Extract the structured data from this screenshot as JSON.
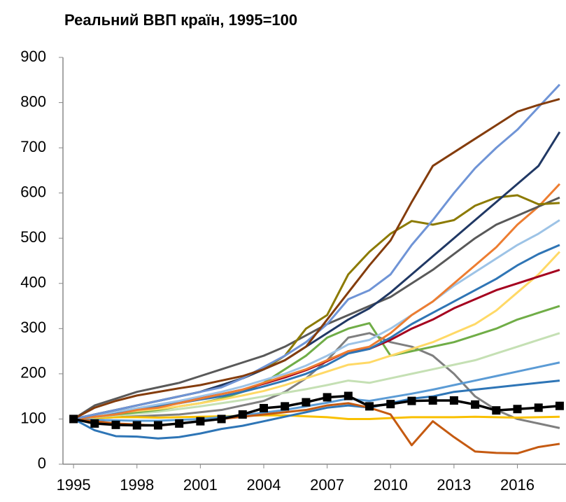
{
  "chart_data": {
    "type": "line",
    "title": "Реальний ВВП країн, 1995=100",
    "x": [
      1995,
      1996,
      1997,
      1998,
      1999,
      2000,
      2001,
      2002,
      2003,
      2004,
      2005,
      2006,
      2007,
      2008,
      2009,
      2010,
      2011,
      2012,
      2013,
      2014,
      2015,
      2016,
      2017,
      2018
    ],
    "xlim": [
      1994.5,
      2018.3
    ],
    "xticks": [
      1995,
      1998,
      2001,
      2004,
      2007,
      2010,
      2013,
      2016
    ],
    "ylim": [
      0,
      900
    ],
    "yticks": [
      0,
      100,
      200,
      300,
      400,
      500,
      600,
      700,
      800,
      900
    ],
    "grid": false,
    "series": [
      {
        "color": "#7f7f7f",
        "values": [
          100,
          102,
          104,
          106,
          108,
          110,
          115,
          120,
          130,
          140,
          160,
          190,
          230,
          280,
          290,
          270,
          260,
          240,
          200,
          150,
          120,
          100,
          90,
          80
        ]
      },
      {
        "color": "#f9c000",
        "values": [
          100,
          102,
          104,
          104,
          103,
          104,
          105,
          106,
          107,
          108,
          108,
          106,
          104,
          100,
          100,
          102,
          104,
          104,
          104,
          105,
          104,
          103,
          104,
          105
        ]
      },
      {
        "color": "#c5e0b4",
        "values": [
          100,
          104,
          108,
          112,
          116,
          122,
          128,
          135,
          142,
          150,
          158,
          166,
          175,
          185,
          180,
          190,
          200,
          210,
          220,
          230,
          245,
          260,
          275,
          290
        ]
      },
      {
        "color": "#5b9bd5",
        "values": [
          100,
          98,
          97,
          96,
          96,
          98,
          100,
          104,
          108,
          114,
          120,
          128,
          136,
          145,
          140,
          148,
          156,
          165,
          175,
          185,
          195,
          205,
          215,
          225
        ]
      },
      {
        "color": "#2e75b6",
        "values": [
          100,
          75,
          62,
          61,
          57,
          60,
          68,
          78,
          85,
          95,
          105,
          115,
          125,
          130,
          125,
          135,
          145,
          150,
          160,
          165,
          170,
          175,
          180,
          185
        ]
      },
      {
        "color": "#c55a11",
        "values": [
          100,
          95,
          90,
          88,
          85,
          90,
          95,
          100,
          105,
          110,
          115,
          120,
          130,
          135,
          125,
          110,
          42,
          95,
          60,
          28,
          25,
          24,
          38,
          45
        ]
      },
      {
        "color": "#70ad47",
        "values": [
          100,
          105,
          110,
          115,
          120,
          128,
          135,
          145,
          160,
          180,
          210,
          240,
          280,
          300,
          312,
          240,
          250,
          260,
          270,
          285,
          300,
          320,
          335,
          350
        ]
      },
      {
        "color": "#ffd966",
        "values": [
          100,
          106,
          112,
          118,
          122,
          128,
          135,
          143,
          152,
          162,
          175,
          190,
          205,
          220,
          225,
          240,
          255,
          270,
          290,
          310,
          340,
          380,
          420,
          470
        ]
      },
      {
        "color": "#a5001e",
        "values": [
          100,
          108,
          115,
          122,
          130,
          138,
          146,
          155,
          165,
          178,
          192,
          208,
          228,
          250,
          255,
          275,
          300,
          320,
          345,
          365,
          385,
          400,
          415,
          430
        ]
      },
      {
        "color": "#2f75b5",
        "values": [
          100,
          108,
          115,
          122,
          128,
          135,
          143,
          150,
          160,
          172,
          185,
          200,
          220,
          245,
          255,
          280,
          310,
          335,
          360,
          385,
          410,
          440,
          465,
          485
        ]
      },
      {
        "color": "#9dc3e6",
        "values": [
          100,
          108,
          116,
          124,
          132,
          140,
          150,
          160,
          172,
          186,
          200,
          218,
          240,
          265,
          275,
          300,
          330,
          360,
          395,
          425,
          455,
          485,
          510,
          540
        ]
      },
      {
        "color": "#ed7d31",
        "values": [
          100,
          105,
          110,
          120,
          125,
          135,
          145,
          155,
          165,
          180,
          195,
          210,
          230,
          250,
          260,
          290,
          330,
          360,
          400,
          440,
          480,
          530,
          570,
          620
        ]
      },
      {
        "color": "#595959",
        "values": [
          100,
          130,
          145,
          160,
          170,
          180,
          195,
          210,
          225,
          240,
          260,
          285,
          310,
          330,
          350,
          370,
          400,
          430,
          465,
          500,
          530,
          550,
          570,
          590
        ]
      },
      {
        "color": "#8c7a00",
        "values": [
          100,
          110,
          120,
          130,
          140,
          150,
          160,
          175,
          190,
          210,
          240,
          300,
          330,
          420,
          470,
          510,
          538,
          530,
          540,
          572,
          590,
          595,
          575,
          578
        ]
      },
      {
        "color": "#203864",
        "values": [
          100,
          110,
          120,
          130,
          140,
          150,
          160,
          175,
          190,
          210,
          230,
          260,
          290,
          320,
          345,
          380,
          420,
          460,
          500,
          540,
          580,
          620,
          660,
          735
        ]
      },
      {
        "color": "#6f94d6",
        "values": [
          100,
          110,
          120,
          130,
          140,
          150,
          160,
          170,
          190,
          215,
          240,
          270,
          310,
          365,
          385,
          420,
          485,
          540,
          600,
          655,
          700,
          740,
          790,
          840
        ]
      },
      {
        "color": "#843c0c",
        "values": [
          100,
          125,
          140,
          152,
          160,
          168,
          175,
          185,
          195,
          210,
          230,
          260,
          320,
          380,
          440,
          495,
          580,
          660,
          690,
          720,
          750,
          780,
          795,
          808
        ]
      },
      {
        "color": "#000000",
        "marker": "square",
        "values": [
          100,
          90,
          87,
          86,
          86,
          90,
          95,
          100,
          110,
          124,
          128,
          137,
          148,
          151,
          128,
          133,
          140,
          141,
          141,
          132,
          119,
          122,
          125,
          129
        ]
      }
    ]
  }
}
